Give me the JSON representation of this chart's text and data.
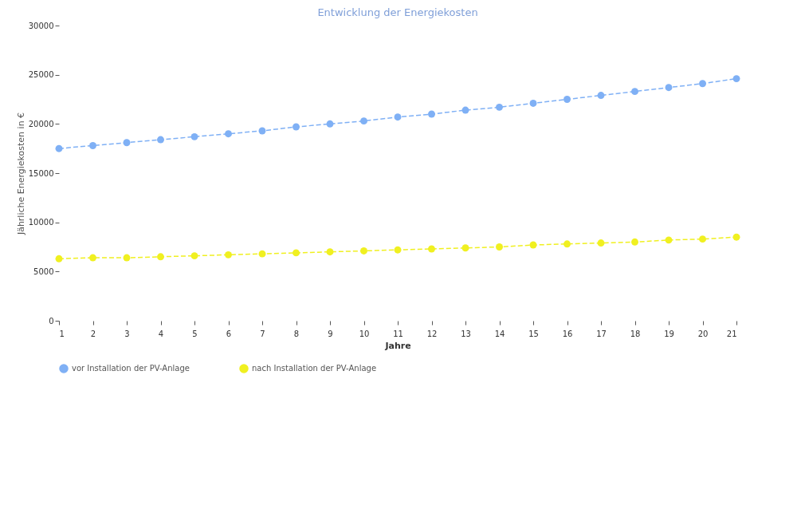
{
  "chart_data": {
    "type": "line",
    "title": "Entwicklung der Energiekosten",
    "xlabel": "Jahre",
    "ylabel": "Jährliche Energiekosten in €",
    "x": [
      1,
      2,
      3,
      4,
      5,
      6,
      7,
      8,
      9,
      10,
      11,
      12,
      13,
      14,
      15,
      16,
      17,
      18,
      19,
      20,
      21
    ],
    "series": [
      {
        "name": "vor Installation der PV-Anlage",
        "color": "#7fb0f5",
        "values": [
          17500,
          17800,
          18100,
          18400,
          18700,
          19000,
          19300,
          19700,
          20000,
          20300,
          20700,
          21000,
          21400,
          21700,
          22100,
          22500,
          22900,
          23300,
          23700,
          24100,
          24600
        ]
      },
      {
        "name": "nach Installation der PV-Anlage",
        "color": "#f0f020",
        "values": [
          6300,
          6400,
          6400,
          6500,
          6600,
          6700,
          6800,
          6900,
          7000,
          7100,
          7200,
          7300,
          7400,
          7500,
          7700,
          7800,
          7900,
          8000,
          8200,
          8300,
          8500
        ]
      }
    ],
    "xlim": [
      1,
      21
    ],
    "xticks": [
      1,
      2,
      3,
      4,
      5,
      6,
      7,
      8,
      9,
      10,
      11,
      12,
      13,
      14,
      15,
      16,
      17,
      18,
      19,
      20,
      21
    ],
    "ylim": [
      0,
      30000
    ],
    "yticks": [
      0,
      5000,
      10000,
      15000,
      20000,
      25000,
      30000
    ],
    "grid": false,
    "legend": "bottom left",
    "marker": "circle",
    "line_style": "dashed"
  }
}
